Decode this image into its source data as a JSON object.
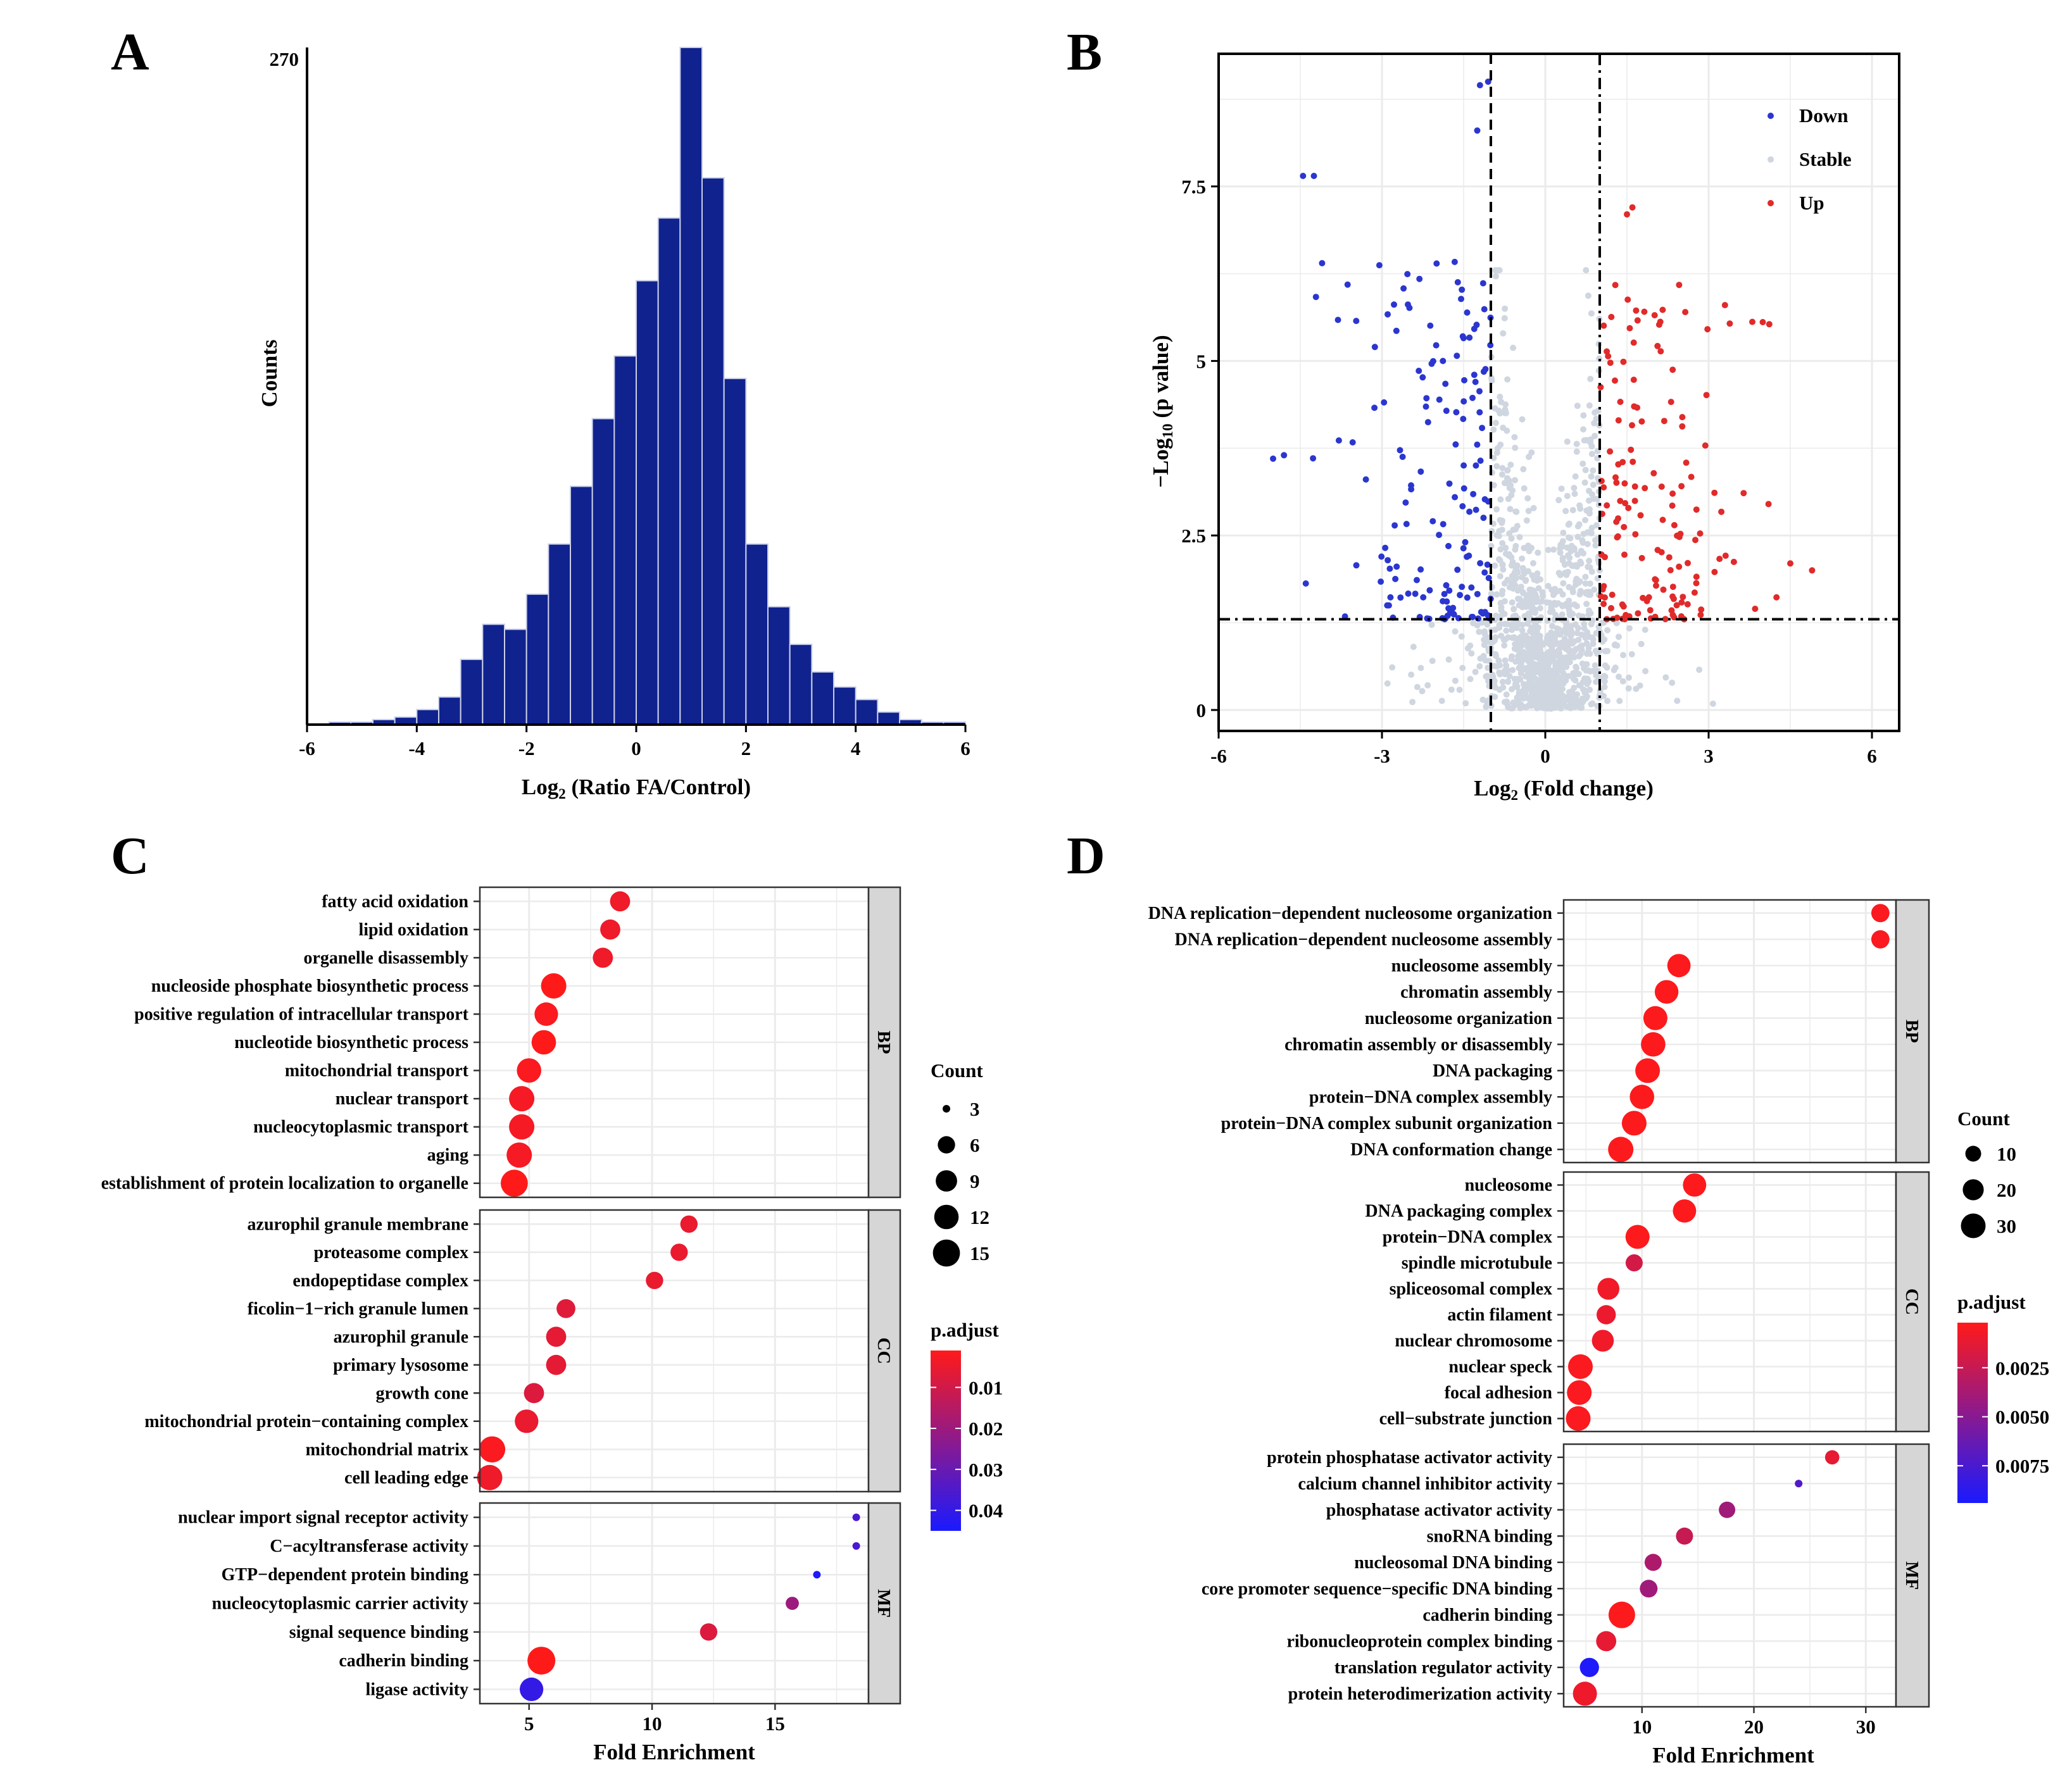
{
  "panel_labels": [
    "A",
    "B",
    "C",
    "D"
  ],
  "colors": {
    "hist_bar": "#10228e",
    "hist_edge": "#c9cfe6",
    "down": "#2b36d0",
    "stable": "#cfd6e0",
    "up": "#e12a2a",
    "high": "#ff1a1a",
    "low": "#1a1aff",
    "strip": "#d6d6d6",
    "grid": "#ebebeb"
  },
  "chart_data": [
    {
      "id": "A",
      "type": "bar",
      "xlabel_main": "Log",
      "xlabel_sub": "2",
      "xlabel_rest": " (Ratio FA/Control)",
      "ylabel": "Counts",
      "y_top_label": "270",
      "xlim": [
        -6,
        6
      ],
      "ylim": [
        0,
        270
      ],
      "xticks": [
        "-6",
        "-4",
        "-2",
        "0",
        "2",
        "4",
        "6"
      ],
      "bin_width": 0.4,
      "bin_start": -5.6,
      "values": [
        1,
        1,
        2,
        3,
        6,
        11,
        26,
        40,
        38,
        52,
        72,
        95,
        122,
        147,
        177,
        202,
        270,
        218,
        138,
        72,
        47,
        32,
        21,
        15,
        10,
        5,
        2,
        1,
        1
      ]
    },
    {
      "id": "B",
      "type": "scatter",
      "xlabel_main": "Log",
      "xlabel_sub": "2",
      "xlabel_rest": " (Fold change)",
      "ylabel_main": "−Log",
      "ylabel_sub": "10",
      "ylabel_rest": " (p value)",
      "xlim": [
        -6.0,
        6.5
      ],
      "ylim": [
        -0.3,
        9.4
      ],
      "xticks": [
        -6,
        -3,
        0,
        3,
        6
      ],
      "xtick_labels": [
        "-6",
        "-3",
        "0",
        "3",
        "6"
      ],
      "yticks": [
        0,
        2.5,
        5,
        7.5
      ],
      "ytick_labels": [
        "0",
        "2.5",
        "5",
        "7.5"
      ],
      "fc_threshold": [
        -1,
        1
      ],
      "p_threshold": 1.3,
      "legend": [
        "Down",
        "Stable",
        "Up"
      ],
      "legend_position": "top-right",
      "labeled_points": [
        {
          "group": "Down",
          "x": -5.0,
          "y": 3.6
        },
        {
          "group": "Down",
          "x": -4.8,
          "y": 3.65
        },
        {
          "group": "Down",
          "x": -4.45,
          "y": 7.65
        },
        {
          "group": "Down",
          "x": -4.25,
          "y": 7.65
        },
        {
          "group": "Down",
          "x": -4.1,
          "y": 6.4
        },
        {
          "group": "Down",
          "x": -1.2,
          "y": 8.95
        },
        {
          "group": "Down",
          "x": -1.05,
          "y": 9.0
        },
        {
          "group": "Down",
          "x": -1.25,
          "y": 8.3
        },
        {
          "group": "Up",
          "x": 4.9,
          "y": 2.0
        },
        {
          "group": "Up",
          "x": 4.5,
          "y": 2.1
        },
        {
          "group": "Up",
          "x": 4.1,
          "y": 2.95
        },
        {
          "group": "Up",
          "x": 1.6,
          "y": 7.2
        },
        {
          "group": "Up",
          "x": 1.5,
          "y": 7.1
        },
        {
          "group": "Up",
          "x": 3.3,
          "y": 5.8
        }
      ]
    },
    {
      "id": "C",
      "type": "scatter",
      "subtype": "dot_enrichment",
      "xlabel": "Fold Enrichment",
      "xlim": [
        3.0,
        18.8
      ],
      "xticks": [
        5,
        10,
        15
      ],
      "xtick_labels": [
        "5",
        "10",
        "15"
      ],
      "size_legend_title": "Count",
      "size_legend": [
        3,
        6,
        9,
        12,
        15
      ],
      "color_legend_title": "p.adjust",
      "color_range": [
        0.001,
        0.045
      ],
      "color_legend_ticks": [
        0.01,
        0.02,
        0.03,
        0.04
      ],
      "color_legend_labels": [
        "0.01",
        "0.02",
        "0.03",
        "0.04"
      ],
      "facets": [
        {
          "name": "BP",
          "terms": [
            {
              "term": "fatty acid oxidation",
              "fe": 8.7,
              "count": 8,
              "padj": 0.004
            },
            {
              "term": "lipid oxidation",
              "fe": 8.3,
              "count": 8,
              "padj": 0.004
            },
            {
              "term": "organelle disassembly",
              "fe": 8.0,
              "count": 8,
              "padj": 0.004
            },
            {
              "term": "nucleoside phosphate biosynthetic process",
              "fe": 6.0,
              "count": 13,
              "padj": 0.001
            },
            {
              "term": "positive regulation of intracellular transport",
              "fe": 5.7,
              "count": 11,
              "padj": 0.002
            },
            {
              "term": "nucleotide biosynthetic process",
              "fe": 5.6,
              "count": 12,
              "padj": 0.001
            },
            {
              "term": "mitochondrial transport",
              "fe": 5.0,
              "count": 12,
              "padj": 0.002
            },
            {
              "term": "nuclear transport",
              "fe": 4.7,
              "count": 13,
              "padj": 0.003
            },
            {
              "term": "nucleocytoplasmic transport",
              "fe": 4.7,
              "count": 13,
              "padj": 0.003
            },
            {
              "term": "aging",
              "fe": 4.6,
              "count": 13,
              "padj": 0.003
            },
            {
              "term": "establishment of protein localization to organelle",
              "fe": 4.4,
              "count": 15,
              "padj": 0.001
            }
          ]
        },
        {
          "name": "CC",
          "terms": [
            {
              "term": "azurophil granule membrane",
              "fe": 11.5,
              "count": 6,
              "padj": 0.005
            },
            {
              "term": "proteasome complex",
              "fe": 11.1,
              "count": 6,
              "padj": 0.005
            },
            {
              "term": "endopeptidase complex",
              "fe": 10.1,
              "count": 6,
              "padj": 0.005
            },
            {
              "term": "ficolin−1−rich granule lumen",
              "fe": 6.5,
              "count": 7,
              "padj": 0.007
            },
            {
              "term": "azurophil granule",
              "fe": 6.1,
              "count": 8,
              "padj": 0.006
            },
            {
              "term": "primary lysosome",
              "fe": 6.1,
              "count": 8,
              "padj": 0.006
            },
            {
              "term": "growth cone",
              "fe": 5.2,
              "count": 8,
              "padj": 0.008
            },
            {
              "term": "mitochondrial protein−containing complex",
              "fe": 4.9,
              "count": 11,
              "padj": 0.005
            },
            {
              "term": "mitochondrial matrix",
              "fe": 3.5,
              "count": 14,
              "padj": 0.002
            },
            {
              "term": "cell leading edge",
              "fe": 3.4,
              "count": 13,
              "padj": 0.004
            }
          ]
        },
        {
          "name": "MF",
          "terms": [
            {
              "term": "nuclear import signal receptor activity",
              "fe": 18.3,
              "count": 3,
              "padj": 0.036
            },
            {
              "term": "C−acyltransferase activity",
              "fe": 18.3,
              "count": 3,
              "padj": 0.036
            },
            {
              "term": "GTP−dependent protein binding",
              "fe": 16.7,
              "count": 3,
              "padj": 0.044
            },
            {
              "term": "nucleocytoplasmic carrier activity",
              "fe": 15.7,
              "count": 4,
              "padj": 0.02
            },
            {
              "term": "signal sequence binding",
              "fe": 12.3,
              "count": 6,
              "padj": 0.008
            },
            {
              "term": "cadherin binding",
              "fe": 5.5,
              "count": 16,
              "padj": 0.001
            },
            {
              "term": "ligase activity",
              "fe": 5.1,
              "count": 11,
              "padj": 0.04
            }
          ]
        }
      ]
    },
    {
      "id": "D",
      "type": "scatter",
      "subtype": "dot_enrichment",
      "xlabel": "Fold Enrichment",
      "xlim": [
        3.0,
        32.7
      ],
      "xticks": [
        10,
        20,
        30
      ],
      "xtick_labels": [
        "10",
        "20",
        "30"
      ],
      "size_legend_title": "Count",
      "size_legend": [
        10,
        20,
        30
      ],
      "color_legend_title": "p.adjust",
      "color_range": [
        0.0002,
        0.0094
      ],
      "color_legend_ticks": [
        0.0025,
        0.005,
        0.0075
      ],
      "color_legend_labels": [
        "0.0025",
        "0.0050",
        "0.0075"
      ],
      "facets": [
        {
          "name": "BP",
          "terms": [
            {
              "term": "DNA replication−dependent nucleosome organization",
              "fe": 31.3,
              "count": 14,
              "padj": 0.0004
            },
            {
              "term": "DNA replication−dependent nucleosome assembly",
              "fe": 31.3,
              "count": 14,
              "padj": 0.0004
            },
            {
              "term": "nucleosome assembly",
              "fe": 13.3,
              "count": 26,
              "padj": 0.0003
            },
            {
              "term": "chromatin assembly",
              "fe": 12.2,
              "count": 27,
              "padj": 0.0003
            },
            {
              "term": "nucleosome organization",
              "fe": 11.2,
              "count": 28,
              "padj": 0.0003
            },
            {
              "term": "chromatin assembly or disassembly",
              "fe": 11.0,
              "count": 29,
              "padj": 0.0003
            },
            {
              "term": "DNA packaging",
              "fe": 10.5,
              "count": 30,
              "padj": 0.0003
            },
            {
              "term": "protein−DNA complex assembly",
              "fe": 10.0,
              "count": 29,
              "padj": 0.0003
            },
            {
              "term": "protein−DNA complex subunit organization",
              "fe": 9.3,
              "count": 30,
              "padj": 0.0003
            },
            {
              "term": "DNA conformation change",
              "fe": 8.1,
              "count": 32,
              "padj": 0.0003
            }
          ]
        },
        {
          "name": "CC",
          "terms": [
            {
              "term": "nucleosome",
              "fe": 14.7,
              "count": 26,
              "padj": 0.0003
            },
            {
              "term": "DNA packaging complex",
              "fe": 13.8,
              "count": 26,
              "padj": 0.0003
            },
            {
              "term": "protein−DNA complex",
              "fe": 9.6,
              "count": 28,
              "padj": 0.0003
            },
            {
              "term": "spindle microtubule",
              "fe": 9.3,
              "count": 12,
              "padj": 0.002
            },
            {
              "term": "spliceosomal complex",
              "fe": 7.0,
              "count": 22,
              "padj": 0.0008
            },
            {
              "term": "actin filament",
              "fe": 6.8,
              "count": 16,
              "padj": 0.001
            },
            {
              "term": "nuclear chromosome",
              "fe": 6.5,
              "count": 22,
              "padj": 0.0008
            },
            {
              "term": "nuclear speck",
              "fe": 4.5,
              "count": 30,
              "padj": 0.0004
            },
            {
              "term": "focal adhesion",
              "fe": 4.4,
              "count": 30,
              "padj": 0.0004
            },
            {
              "term": "cell−substrate junction",
              "fe": 4.3,
              "count": 30,
              "padj": 0.0004
            }
          ]
        },
        {
          "name": "MF",
          "terms": [
            {
              "term": "protein phosphatase activator activity",
              "fe": 27.0,
              "count": 8,
              "padj": 0.0012
            },
            {
              "term": "calcium channel inhibitor activity",
              "fe": 24.0,
              "count": 4,
              "padj": 0.0072
            },
            {
              "term": "phosphatase activator activity",
              "fe": 17.6,
              "count": 11,
              "padj": 0.004
            },
            {
              "term": "snoRNA binding",
              "fe": 13.8,
              "count": 12,
              "padj": 0.0025
            },
            {
              "term": "nucleosomal DNA binding",
              "fe": 11.0,
              "count": 12,
              "padj": 0.0035
            },
            {
              "term": "core promoter sequence−specific DNA binding",
              "fe": 10.6,
              "count": 13,
              "padj": 0.004
            },
            {
              "term": "cadherin binding",
              "fe": 8.2,
              "count": 36,
              "padj": 0.0003
            },
            {
              "term": "ribonucleoprotein complex binding",
              "fe": 6.8,
              "count": 18,
              "padj": 0.0012
            },
            {
              "term": "translation regulator activity",
              "fe": 5.3,
              "count": 16,
              "padj": 0.0092
            },
            {
              "term": "protein heterodimerization activity",
              "fe": 4.9,
              "count": 28,
              "padj": 0.0009
            }
          ]
        }
      ]
    }
  ]
}
